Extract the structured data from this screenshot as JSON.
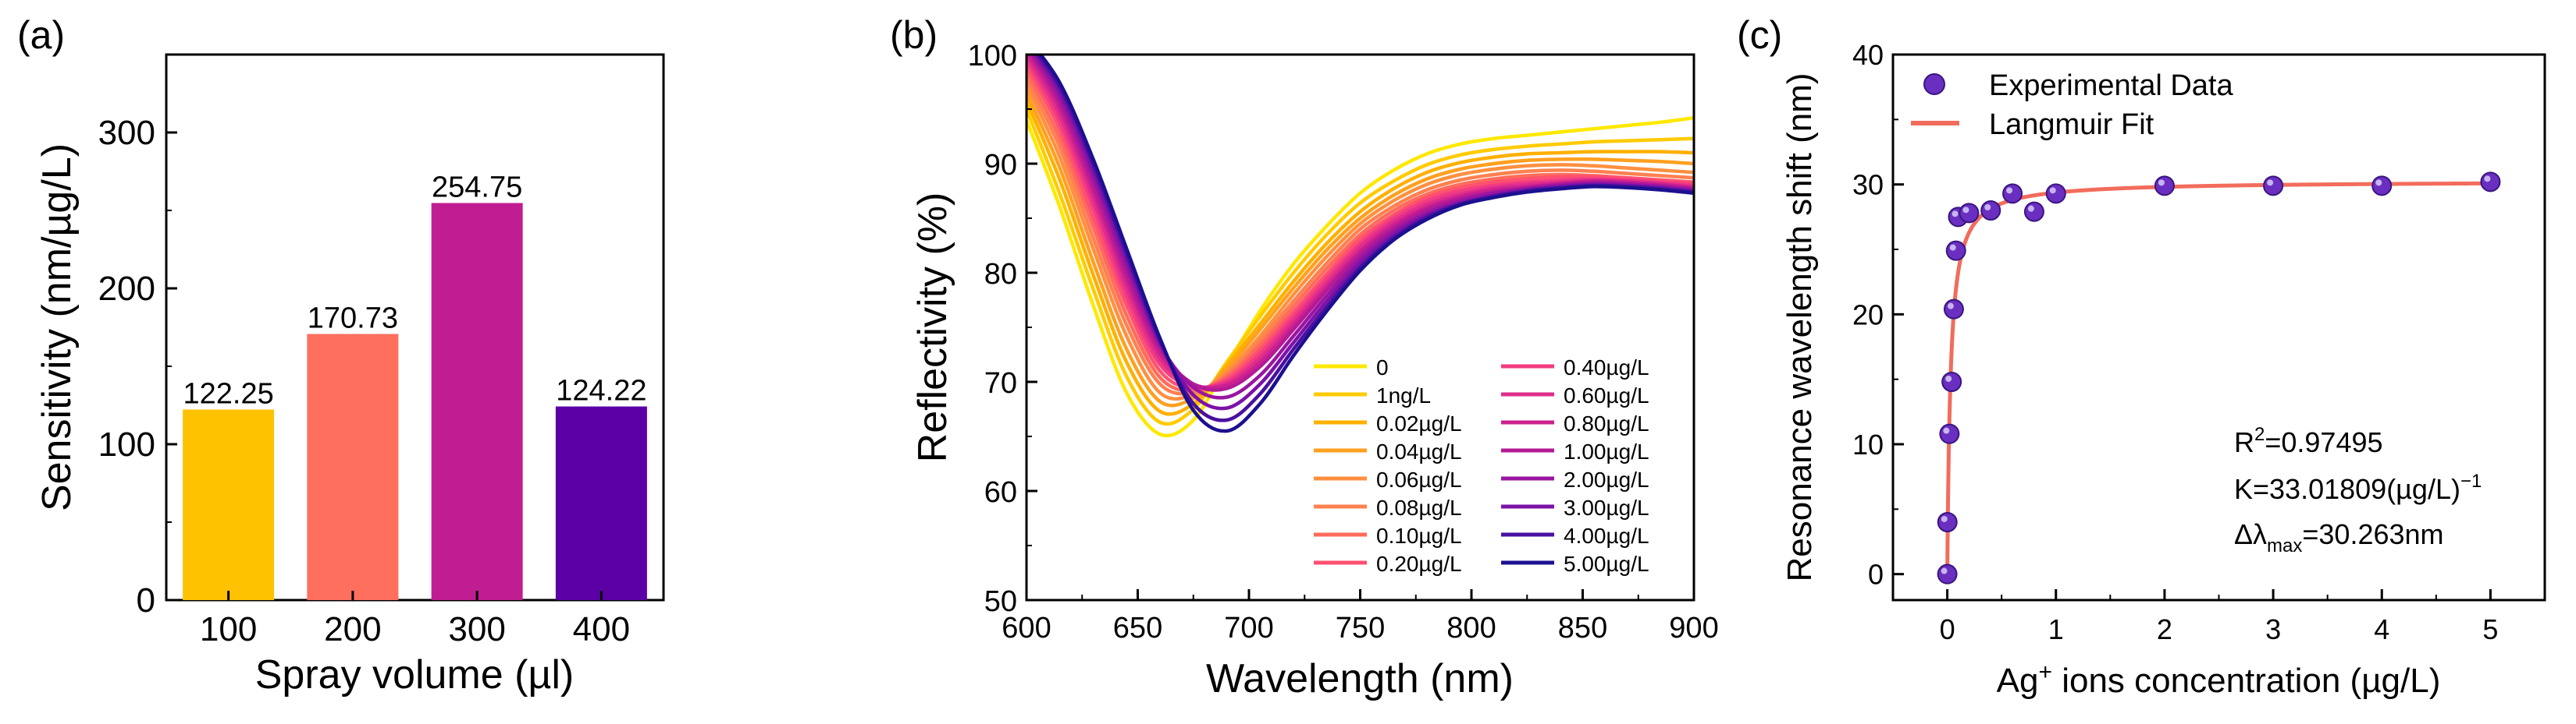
{
  "panels": {
    "a": {
      "tag": "(a)"
    },
    "b": {
      "tag": "(b)"
    },
    "c": {
      "tag": "(c)"
    }
  },
  "chart_data": [
    {
      "id": "a",
      "type": "bar",
      "title": "",
      "xlabel": "Spray volume (µl)",
      "ylabel": "Sensitivity (nm/µg/L)",
      "categories": [
        "100",
        "200",
        "300",
        "400"
      ],
      "values": [
        122.25,
        170.73,
        254.75,
        124.22
      ],
      "data_labels": [
        "122.25",
        "170.73",
        "254.75",
        "124.22"
      ],
      "colors": [
        "#FEC200",
        "#FE6F5E",
        "#C01D92",
        "#5B00A5"
      ],
      "ylim": [
        0,
        350
      ],
      "yticks": [
        0,
        100,
        200,
        300
      ]
    },
    {
      "id": "b",
      "type": "line",
      "title": "",
      "xlabel": "Wavelength (nm)",
      "ylabel": "Reflectivity (%)",
      "xlim": [
        600,
        900
      ],
      "ylim": [
        50,
        100
      ],
      "xticks": [
        600,
        650,
        700,
        750,
        800,
        850,
        900
      ],
      "yticks": [
        50,
        60,
        70,
        80,
        90,
        100
      ],
      "legend": "bottom-right",
      "x": [
        600,
        615,
        630,
        645,
        660,
        675,
        690,
        705,
        720,
        735,
        750,
        765,
        780,
        795,
        810,
        825,
        840,
        855,
        870,
        885,
        900
      ],
      "series": [
        {
          "name": "0",
          "color": "#FFE800",
          "values": [
            94.0,
            86.0,
            77.0,
            69.0,
            65.2,
            66.5,
            71.5,
            76.5,
            80.8,
            84.3,
            87.3,
            89.4,
            90.9,
            91.8,
            92.3,
            92.6,
            92.9,
            93.2,
            93.5,
            93.8,
            94.2
          ]
        },
        {
          "name": "1ng/L",
          "color": "#FFCB00",
          "values": [
            95.0,
            87.2,
            78.5,
            70.5,
            66.3,
            67.5,
            71.8,
            76.0,
            80.0,
            83.5,
            86.4,
            88.4,
            89.9,
            90.8,
            91.3,
            91.6,
            91.8,
            92.0,
            92.1,
            92.2,
            92.3
          ]
        },
        {
          "name": "0.02µg/L",
          "color": "#FFB000",
          "values": [
            95.8,
            88.5,
            79.8,
            71.8,
            67.3,
            68.0,
            71.5,
            75.3,
            79.2,
            82.7,
            85.6,
            87.7,
            89.2,
            90.1,
            90.6,
            90.9,
            91.0,
            91.1,
            91.1,
            91.1,
            91.0
          ]
        },
        {
          "name": "0.04µg/L",
          "color": "#FFA020",
          "values": [
            96.5,
            89.6,
            81.0,
            73.0,
            68.2,
            68.5,
            71.2,
            74.8,
            78.6,
            82.1,
            85.0,
            87.1,
            88.6,
            89.5,
            90.0,
            90.3,
            90.4,
            90.4,
            90.3,
            90.2,
            90.0
          ]
        },
        {
          "name": "0.06µg/L",
          "color": "#FF9040",
          "values": [
            97.2,
            90.6,
            82.2,
            74.2,
            69.0,
            68.8,
            70.9,
            74.2,
            78.0,
            81.5,
            84.5,
            86.6,
            88.1,
            89.0,
            89.5,
            89.8,
            89.9,
            89.8,
            89.6,
            89.4,
            89.2
          ]
        },
        {
          "name": "0.08µg/L",
          "color": "#FF8050",
          "values": [
            97.8,
            91.5,
            83.2,
            75.2,
            69.8,
            69.0,
            70.7,
            73.8,
            77.4,
            80.9,
            84.0,
            86.1,
            87.6,
            88.5,
            89.0,
            89.3,
            89.4,
            89.3,
            89.1,
            88.9,
            88.7
          ]
        },
        {
          "name": "0.10µg/L",
          "color": "#FF6B5B",
          "values": [
            98.4,
            92.3,
            84.2,
            76.1,
            70.4,
            69.2,
            70.5,
            73.4,
            76.9,
            80.4,
            83.5,
            85.7,
            87.2,
            88.1,
            88.6,
            88.9,
            89.0,
            88.9,
            88.7,
            88.5,
            88.3
          ]
        },
        {
          "name": "0.20µg/L",
          "color": "#FF5070",
          "values": [
            99.0,
            93.1,
            85.1,
            77.0,
            71.0,
            69.4,
            70.3,
            73.0,
            76.4,
            79.9,
            83.1,
            85.3,
            86.9,
            87.8,
            88.3,
            88.6,
            88.8,
            88.8,
            88.7,
            88.5,
            88.3
          ]
        },
        {
          "name": "0.40µg/L",
          "color": "#F23C82",
          "values": [
            99.5,
            93.8,
            86.0,
            77.8,
            71.6,
            69.6,
            70.1,
            72.6,
            76.0,
            79.5,
            82.7,
            85.0,
            86.6,
            87.5,
            88.0,
            88.3,
            88.5,
            88.6,
            88.5,
            88.3,
            88.1
          ]
        },
        {
          "name": "0.60µg/L",
          "color": "#E02D8C",
          "values": [
            99.9,
            94.4,
            86.7,
            78.5,
            72.1,
            69.7,
            69.9,
            72.2,
            75.6,
            79.1,
            82.4,
            84.7,
            86.3,
            87.2,
            87.8,
            88.1,
            88.3,
            88.5,
            88.4,
            88.2,
            87.9
          ]
        },
        {
          "name": "0.80µg/L",
          "color": "#CC2090",
          "values": [
            100.3,
            95.0,
            87.4,
            79.2,
            72.6,
            69.8,
            69.7,
            71.8,
            75.2,
            78.7,
            82.0,
            84.4,
            86.0,
            87.0,
            87.6,
            87.9,
            88.2,
            88.4,
            88.3,
            88.1,
            87.8
          ]
        },
        {
          "name": "1.00µg/L",
          "color": "#B31A96",
          "values": [
            100.7,
            95.5,
            88.0,
            79.8,
            73.0,
            69.8,
            69.4,
            71.4,
            74.8,
            78.4,
            81.7,
            84.1,
            85.8,
            86.8,
            87.4,
            87.8,
            88.1,
            88.3,
            88.2,
            88.0,
            87.7
          ]
        },
        {
          "name": "2.00µg/L",
          "color": "#9A15A0",
          "values": [
            101.0,
            96.0,
            88.7,
            80.5,
            73.4,
            69.5,
            68.6,
            70.6,
            74.2,
            77.9,
            81.3,
            83.8,
            85.5,
            86.6,
            87.3,
            87.7,
            88.0,
            88.2,
            88.1,
            87.9,
            87.6
          ]
        },
        {
          "name": "3.00µg/L",
          "color": "#7C12A8",
          "values": [
            101.2,
            96.5,
            89.3,
            81.1,
            73.6,
            68.8,
            67.6,
            69.8,
            73.6,
            77.4,
            80.9,
            83.5,
            85.3,
            86.4,
            87.1,
            87.6,
            87.9,
            88.1,
            88.0,
            87.8,
            87.5
          ]
        },
        {
          "name": "4.00µg/L",
          "color": "#4A10A0",
          "values": [
            101.4,
            97.0,
            89.9,
            81.7,
            73.8,
            68.0,
            66.5,
            68.9,
            73.0,
            76.9,
            80.5,
            83.2,
            85.1,
            86.3,
            87.0,
            87.5,
            87.8,
            88.0,
            87.9,
            87.7,
            87.4
          ]
        },
        {
          "name": "5.00µg/L",
          "color": "#1C1090",
          "values": [
            101.6,
            97.4,
            90.4,
            82.2,
            74.0,
            67.4,
            65.5,
            68.0,
            72.4,
            76.5,
            80.2,
            83.0,
            84.9,
            86.2,
            86.9,
            87.4,
            87.7,
            87.9,
            87.8,
            87.6,
            87.3
          ]
        }
      ]
    },
    {
      "id": "c",
      "type": "scatter",
      "title": "",
      "xlabel_prefix": "Ag",
      "xlabel_sup": "+",
      "xlabel_suffix": " ions concentration (µg/L)",
      "ylabel": "Resonance wavelength shift (nm)",
      "xlim": [
        -0.5,
        5.5
      ],
      "ylim": [
        -2,
        40
      ],
      "xticks": [
        0,
        1,
        2,
        3,
        4,
        5
      ],
      "yticks": [
        0,
        10,
        20,
        30,
        40
      ],
      "legend": "top-left",
      "series": [
        {
          "name": "Experimental Data",
          "color": "#6A2FC0",
          "x": [
            0,
            0.001,
            0.02,
            0.04,
            0.06,
            0.08,
            0.1,
            0.2,
            0.4,
            0.6,
            0.8,
            1.0,
            2.0,
            3.0,
            4.0,
            5.0
          ],
          "y": [
            0,
            4.0,
            10.8,
            14.8,
            20.4,
            24.9,
            27.5,
            27.8,
            28.0,
            29.3,
            27.9,
            29.3,
            29.9,
            29.9,
            29.9,
            30.2
          ]
        },
        {
          "name": "Langmuir Fit",
          "color": "#F26C5C",
          "model": "langmuir",
          "K": 33.01809,
          "dlambda_max": 30.263
        }
      ],
      "annotations": {
        "r2_prefix": "R",
        "r2_sup": "2",
        "r2_value": "=0.97495",
        "k_text": "K=33.01809(µg/L)",
        "k_sup": "−1",
        "dl_prefix": "Δλ",
        "dl_sub": "max",
        "dl_value": "=30.263nm"
      }
    }
  ]
}
